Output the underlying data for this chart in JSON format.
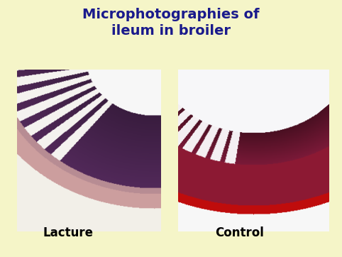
{
  "title_line1": "Microphotographies of",
  "title_line2": "ileum in broiler",
  "title_color": "#1a1a8c",
  "title_fontsize": 14,
  "title_fontstyle": "bold",
  "background_color": "#f5f5c8",
  "label_left": "Lacture",
  "label_right": "Control",
  "label_fontsize": 12,
  "label_color": "#000000",
  "label_fontstyle": "bold",
  "fig_width": 4.82,
  "fig_height": 3.62
}
